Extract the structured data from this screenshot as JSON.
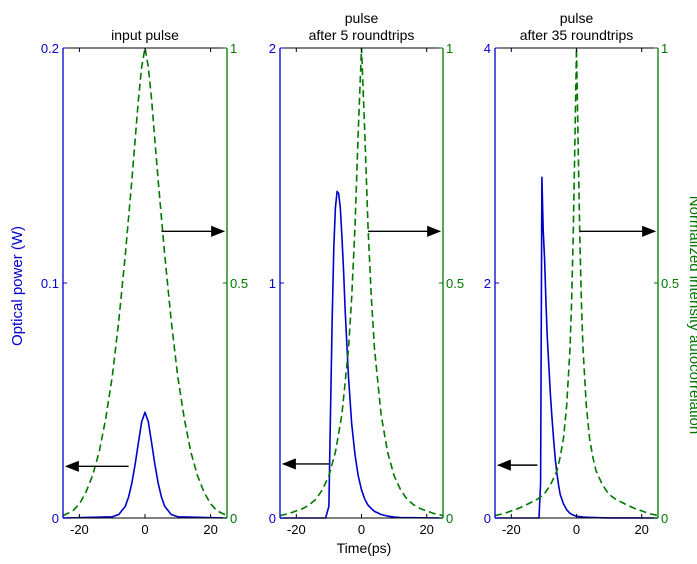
{
  "chart_data": [
    {
      "type": "line",
      "title_lines": [
        "input pulse"
      ],
      "xlim": [
        -25,
        25
      ],
      "x_ticks": [
        -20,
        0,
        20
      ],
      "x_tick_labels": [
        "-20",
        "0",
        "20"
      ],
      "left_ylim": [
        0,
        0.2
      ],
      "left_y_ticks": [
        0,
        0.1,
        0.2
      ],
      "left_y_tick_labels": [
        "0",
        "0.1",
        "0.2"
      ],
      "right_ylim": [
        0,
        1
      ],
      "right_y_ticks": [
        0,
        0.5,
        1
      ],
      "right_y_tick_labels": [
        "0",
        "0.5",
        "1"
      ],
      "grid": false,
      "series": [
        {
          "axis": "left",
          "color": "#0000cc",
          "style": "solid",
          "x": [
            -25,
            -10,
            -8,
            -6,
            -5,
            -4,
            -3,
            -2,
            -1,
            0,
            1,
            2,
            3,
            4,
            5,
            6,
            8,
            10,
            25
          ],
          "y": [
            0,
            0.0005,
            0.0015,
            0.005,
            0.009,
            0.015,
            0.023,
            0.032,
            0.041,
            0.045,
            0.041,
            0.032,
            0.023,
            0.015,
            0.009,
            0.005,
            0.0015,
            0.0005,
            0
          ]
        },
        {
          "axis": "right",
          "color": "#007700",
          "style": "dashed",
          "x": [
            -25,
            -22,
            -20,
            -18,
            -16,
            -14,
            -12,
            -10,
            -8,
            -6,
            -4,
            -2,
            -1,
            0,
            1,
            2,
            4,
            6,
            8,
            10,
            12,
            14,
            16,
            18,
            20,
            22,
            25
          ],
          "y": [
            0.005,
            0.015,
            0.03,
            0.055,
            0.09,
            0.14,
            0.21,
            0.3,
            0.42,
            0.56,
            0.72,
            0.89,
            0.96,
            1.0,
            0.96,
            0.89,
            0.72,
            0.56,
            0.42,
            0.3,
            0.21,
            0.14,
            0.09,
            0.055,
            0.03,
            0.015,
            0.005
          ]
        }
      ],
      "arrows": [
        {
          "axis": "left",
          "y": 0.022,
          "from_x": -5,
          "to_x": -24
        },
        {
          "axis": "right",
          "y": 0.61,
          "from_x": 5,
          "to_x": 24
        }
      ]
    },
    {
      "type": "line",
      "title_lines": [
        "pulse",
        "after 5 roundtrips"
      ],
      "xlim": [
        -25,
        25
      ],
      "x_ticks": [
        -20,
        0,
        20
      ],
      "x_tick_labels": [
        "-20",
        "0",
        "20"
      ],
      "left_ylim": [
        0,
        2
      ],
      "left_y_ticks": [
        0,
        1,
        2
      ],
      "left_y_tick_labels": [
        "0",
        "1",
        "2"
      ],
      "right_ylim": [
        0,
        1
      ],
      "right_y_ticks": [
        0,
        0.5,
        1
      ],
      "right_y_tick_labels": [
        "0",
        "0.5",
        "1"
      ],
      "grid": false,
      "series": [
        {
          "axis": "left",
          "color": "#0000cc",
          "style": "solid",
          "x": [
            -25,
            -11,
            -10,
            -9.5,
            -9,
            -8.5,
            -8,
            -7.5,
            -7,
            -6.5,
            -6,
            -5.5,
            -5,
            -4,
            -3,
            -2,
            -1,
            0,
            1,
            2,
            3,
            4,
            6,
            8,
            10,
            12,
            25
          ],
          "y": [
            0,
            0,
            0.05,
            0.45,
            0.85,
            1.15,
            1.32,
            1.39,
            1.38,
            1.32,
            1.2,
            1.05,
            0.88,
            0.6,
            0.4,
            0.27,
            0.18,
            0.12,
            0.08,
            0.055,
            0.04,
            0.028,
            0.015,
            0.008,
            0.004,
            0.002,
            0
          ]
        },
        {
          "axis": "right",
          "color": "#007700",
          "style": "dashed",
          "x": [
            -25,
            -22,
            -20,
            -18,
            -16,
            -14,
            -12,
            -10,
            -8,
            -6,
            -4,
            -3,
            -2,
            -1,
            0,
            1,
            2,
            3,
            4,
            6,
            8,
            10,
            12,
            14,
            16,
            18,
            20,
            22,
            25
          ],
          "y": [
            0.005,
            0.01,
            0.015,
            0.02,
            0.028,
            0.04,
            0.06,
            0.09,
            0.14,
            0.22,
            0.36,
            0.47,
            0.62,
            0.82,
            1.0,
            0.82,
            0.62,
            0.47,
            0.36,
            0.22,
            0.14,
            0.09,
            0.06,
            0.04,
            0.028,
            0.02,
            0.015,
            0.01,
            0.005
          ]
        }
      ],
      "arrows": [
        {
          "axis": "left",
          "y": 0.23,
          "from_x": -10,
          "to_x": -24
        },
        {
          "axis": "right",
          "y": 0.61,
          "from_x": 2,
          "to_x": 24
        }
      ]
    },
    {
      "type": "line",
      "title_lines": [
        "pulse",
        "after 35 roundtrips"
      ],
      "xlim": [
        -25,
        25
      ],
      "x_ticks": [
        -20,
        0,
        20
      ],
      "x_tick_labels": [
        "-20",
        "0",
        "20"
      ],
      "left_ylim": [
        0,
        4
      ],
      "left_y_ticks": [
        0,
        2,
        4
      ],
      "left_y_tick_labels": [
        "0",
        "2",
        "4"
      ],
      "right_ylim": [
        0,
        1
      ],
      "right_y_ticks": [
        0,
        0.5,
        1
      ],
      "right_y_tick_labels": [
        "0",
        "0.5",
        "1"
      ],
      "grid": false,
      "series": [
        {
          "axis": "left",
          "color": "#0000cc",
          "style": "solid",
          "x": [
            -25,
            -11.5,
            -11,
            -10.6,
            -10.2,
            -9.8,
            -9.4,
            -9,
            -8.5,
            -8,
            -7.5,
            -7,
            -6.5,
            -6,
            -5.5,
            -5,
            -4,
            -3,
            -2,
            -1,
            0,
            2,
            4,
            6,
            8,
            10,
            12,
            25
          ],
          "y": [
            0,
            0,
            0.3,
            2.9,
            2.45,
            2.2,
            1.85,
            1.55,
            1.3,
            1.05,
            0.85,
            0.66,
            0.5,
            0.38,
            0.28,
            0.2,
            0.12,
            0.07,
            0.04,
            0.025,
            0.015,
            0.008,
            0.005,
            0.003,
            0.002,
            0.001,
            0.001,
            0
          ]
        },
        {
          "axis": "right",
          "color": "#007700",
          "style": "dashed",
          "x": [
            -25,
            -22,
            -20,
            -18,
            -16,
            -14,
            -12,
            -10,
            -8,
            -6,
            -5,
            -4,
            -3,
            -2,
            -1.5,
            -1,
            -0.5,
            0,
            0.5,
            1,
            1.5,
            2,
            3,
            4,
            5,
            6,
            8,
            10,
            12,
            14,
            16,
            18,
            20,
            22,
            25
          ],
          "y": [
            0.005,
            0.01,
            0.015,
            0.02,
            0.026,
            0.033,
            0.04,
            0.05,
            0.07,
            0.1,
            0.13,
            0.17,
            0.24,
            0.36,
            0.46,
            0.6,
            0.8,
            1.0,
            0.8,
            0.6,
            0.46,
            0.36,
            0.24,
            0.17,
            0.13,
            0.1,
            0.07,
            0.05,
            0.04,
            0.033,
            0.026,
            0.02,
            0.015,
            0.01,
            0.005
          ]
        }
      ],
      "arrows": [
        {
          "axis": "left",
          "y": 0.45,
          "from_x": -12,
          "to_x": -24
        },
        {
          "axis": "right",
          "y": 0.61,
          "from_x": 1,
          "to_x": 24
        }
      ]
    }
  ],
  "labels": {
    "ylabel_left": "Optical power (W)",
    "ylabel_right": "Normalized intensity autocorrelation",
    "xlabel": "Time(ps)",
    "left_color": "#0000cc",
    "right_color": "#007700"
  }
}
